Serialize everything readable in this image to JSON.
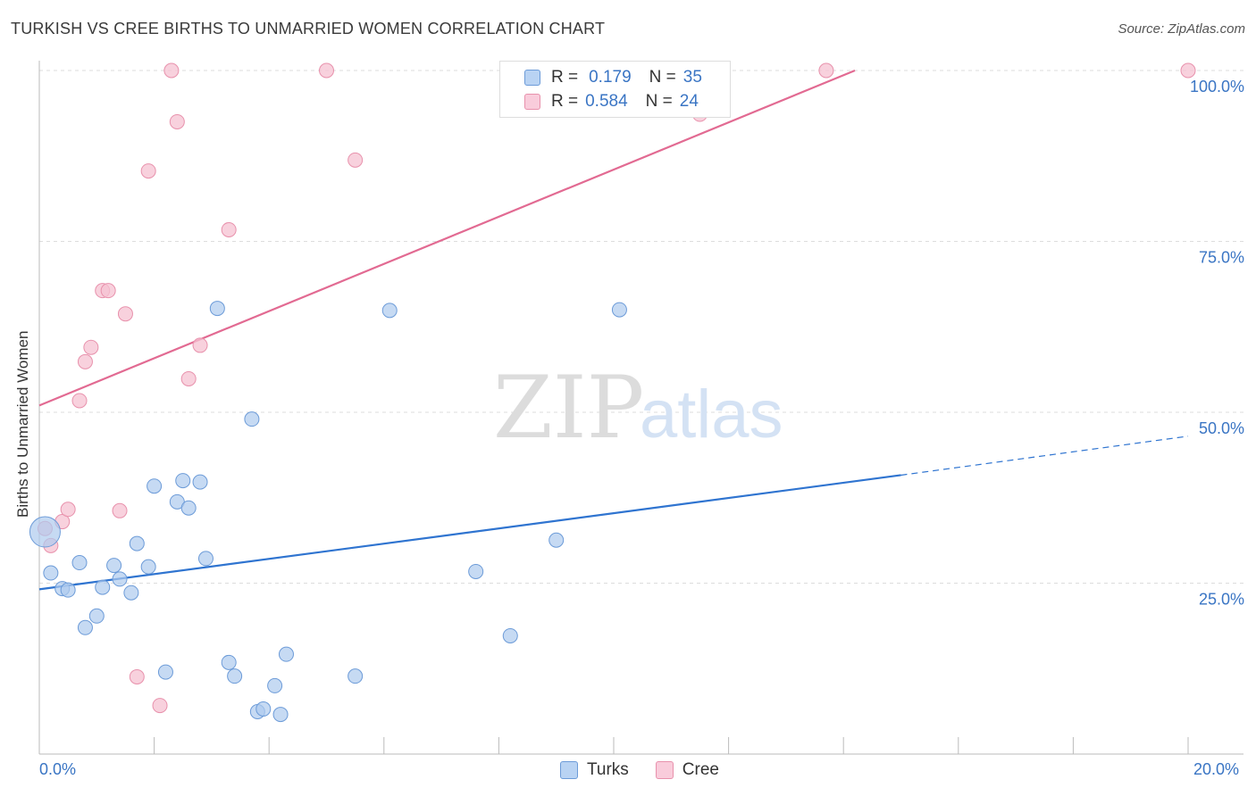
{
  "title": "TURKISH VS CREE BIRTHS TO UNMARRIED WOMEN CORRELATION CHART",
  "source": "Source: ZipAtlas.com",
  "watermark": {
    "zip": "ZIP",
    "atlas": "atlas"
  },
  "legend_top": {
    "rows": [
      {
        "r_label": "R =",
        "r_value": "0.179",
        "n_label": "N =",
        "n_value": "35"
      },
      {
        "r_label": "R =",
        "r_value": "0.584",
        "n_label": "N =",
        "n_value": "24"
      }
    ]
  },
  "chart_data": {
    "type": "scatter",
    "title": "TURKISH VS CREE BIRTHS TO UNMARRIED WOMEN CORRELATION CHART",
    "xlabel": "",
    "ylabel": "Births to Unmarried Women",
    "xlim": [
      0,
      20
    ],
    "ylim": [
      0,
      103
    ],
    "x_tick_labels": [
      "0.0%",
      "20.0%"
    ],
    "y_ticks": [
      25,
      50,
      75,
      100
    ],
    "y_tick_labels": [
      "25.0%",
      "50.0%",
      "75.0%",
      "100.0%"
    ],
    "legend": [
      "Turks",
      "Cree"
    ],
    "colors": {
      "turks": "#aecbee",
      "turks_edge": "#6c9bd8",
      "turks_line": "#2f74d0",
      "cree": "#f6c1d2",
      "cree_edge": "#e891ac",
      "cree_line": "#e26a92"
    },
    "series": [
      {
        "name": "Turks",
        "r": 0.179,
        "n": 35,
        "trend": {
          "x0": 0,
          "y0": 24.1,
          "x1": 15,
          "y1": 40.8,
          "dash_to_x": 20,
          "dash_to_y": 46.5
        },
        "points": [
          {
            "x": 0.1,
            "y": 32.5,
            "big": true
          },
          {
            "x": 0.2,
            "y": 26.5
          },
          {
            "x": 0.4,
            "y": 24.2
          },
          {
            "x": 0.5,
            "y": 24.0
          },
          {
            "x": 0.7,
            "y": 28.0
          },
          {
            "x": 0.8,
            "y": 18.5
          },
          {
            "x": 1.0,
            "y": 20.2
          },
          {
            "x": 1.1,
            "y": 24.4
          },
          {
            "x": 1.3,
            "y": 27.6
          },
          {
            "x": 1.4,
            "y": 25.6
          },
          {
            "x": 1.6,
            "y": 23.6
          },
          {
            "x": 1.7,
            "y": 30.8
          },
          {
            "x": 1.9,
            "y": 27.4
          },
          {
            "x": 2.0,
            "y": 39.2
          },
          {
            "x": 2.2,
            "y": 12.0
          },
          {
            "x": 2.4,
            "y": 36.9
          },
          {
            "x": 2.5,
            "y": 40.0
          },
          {
            "x": 2.6,
            "y": 36.0
          },
          {
            "x": 2.8,
            "y": 39.8
          },
          {
            "x": 2.9,
            "y": 28.6
          },
          {
            "x": 3.1,
            "y": 65.2
          },
          {
            "x": 3.3,
            "y": 13.4
          },
          {
            "x": 3.4,
            "y": 11.4
          },
          {
            "x": 3.7,
            "y": 49.0
          },
          {
            "x": 3.8,
            "y": 6.2
          },
          {
            "x": 3.9,
            "y": 6.6
          },
          {
            "x": 4.1,
            "y": 10.0
          },
          {
            "x": 4.2,
            "y": 5.8
          },
          {
            "x": 4.3,
            "y": 14.6
          },
          {
            "x": 5.5,
            "y": 11.4
          },
          {
            "x": 6.1,
            "y": 64.9
          },
          {
            "x": 7.6,
            "y": 26.7
          },
          {
            "x": 8.2,
            "y": 17.3
          },
          {
            "x": 9.0,
            "y": 31.3
          },
          {
            "x": 10.1,
            "y": 65.0
          }
        ]
      },
      {
        "name": "Cree",
        "r": 0.584,
        "n": 24,
        "trend": {
          "x0": 0,
          "y0": 51.0,
          "x1": 14.2,
          "y1": 100.0
        },
        "points": [
          {
            "x": 0.1,
            "y": 33.0
          },
          {
            "x": 0.2,
            "y": 30.5
          },
          {
            "x": 0.4,
            "y": 34.0
          },
          {
            "x": 0.5,
            "y": 35.8
          },
          {
            "x": 0.7,
            "y": 51.7
          },
          {
            "x": 0.8,
            "y": 57.4
          },
          {
            "x": 0.9,
            "y": 59.5
          },
          {
            "x": 1.1,
            "y": 67.8
          },
          {
            "x": 1.2,
            "y": 67.8
          },
          {
            "x": 1.4,
            "y": 35.6
          },
          {
            "x": 1.5,
            "y": 64.4
          },
          {
            "x": 1.7,
            "y": 11.3
          },
          {
            "x": 1.9,
            "y": 85.3
          },
          {
            "x": 2.1,
            "y": 7.1
          },
          {
            "x": 2.3,
            "y": 100.0
          },
          {
            "x": 2.4,
            "y": 92.5
          },
          {
            "x": 2.6,
            "y": 54.9
          },
          {
            "x": 2.8,
            "y": 59.8
          },
          {
            "x": 3.3,
            "y": 76.7
          },
          {
            "x": 5.0,
            "y": 100.0
          },
          {
            "x": 5.5,
            "y": 86.9
          },
          {
            "x": 11.5,
            "y": 93.6
          },
          {
            "x": 13.7,
            "y": 100.0
          },
          {
            "x": 20.0,
            "y": 100.0
          }
        ]
      }
    ]
  }
}
